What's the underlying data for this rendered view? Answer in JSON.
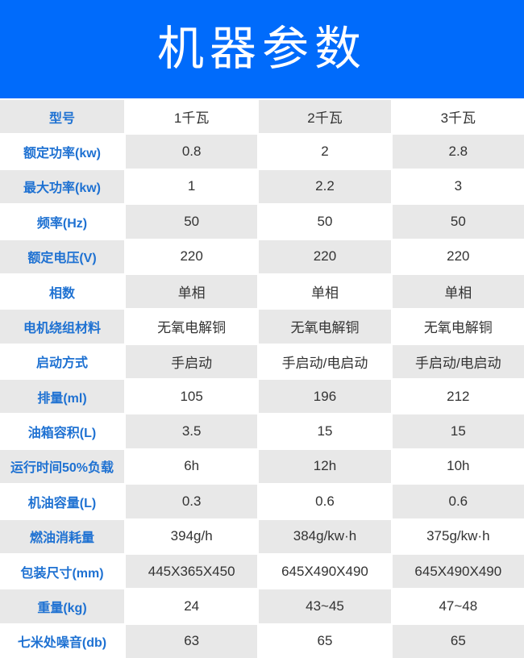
{
  "title": "机器参数",
  "colors": {
    "header_bg": "#006BFB",
    "title_text": "#FFFFFF",
    "label_text": "#1E71D2",
    "value_text": "#333333",
    "cell_gray": "#E8E8E8",
    "cell_white": "#FFFFFF"
  },
  "table": {
    "rows": [
      {
        "label": "型号",
        "values": [
          "1千瓦",
          "2千瓦",
          "3千瓦"
        ]
      },
      {
        "label": "额定功率(kw)",
        "values": [
          "0.8",
          "2",
          "2.8"
        ]
      },
      {
        "label": "最大功率(kw)",
        "values": [
          "1",
          "2.2",
          "3"
        ]
      },
      {
        "label": "频率(Hz)",
        "values": [
          "50",
          "50",
          "50"
        ]
      },
      {
        "label": "额定电压(V)",
        "values": [
          "220",
          "220",
          "220"
        ]
      },
      {
        "label": "相数",
        "values": [
          "单相",
          "单相",
          "单相"
        ]
      },
      {
        "label": "电机绕组材料",
        "values": [
          "无氧电解铜",
          "无氧电解铜",
          "无氧电解铜"
        ]
      },
      {
        "label": "启动方式",
        "values": [
          "手启动",
          "手启动/电启动",
          "手启动/电启动"
        ]
      },
      {
        "label": "排量(ml)",
        "values": [
          "105",
          "196",
          "212"
        ]
      },
      {
        "label": "油箱容积(L)",
        "values": [
          "3.5",
          "15",
          "15"
        ]
      },
      {
        "label": "运行时间50%负载",
        "values": [
          "6h",
          "12h",
          "10h"
        ]
      },
      {
        "label": "机油容量(L)",
        "values": [
          "0.3",
          "0.6",
          "0.6"
        ]
      },
      {
        "label": "燃油消耗量",
        "values": [
          "394g/h",
          "384g/kw·h",
          "375g/kw·h"
        ]
      },
      {
        "label": "包装尺寸(mm)",
        "values": [
          "445X365X450",
          "645X490X490",
          "645X490X490"
        ]
      },
      {
        "label": "重量(kg)",
        "values": [
          "24",
          "43~45",
          "47~48"
        ]
      },
      {
        "label": "七米处噪音(db)",
        "values": [
          "63",
          "65",
          "65"
        ]
      }
    ]
  }
}
